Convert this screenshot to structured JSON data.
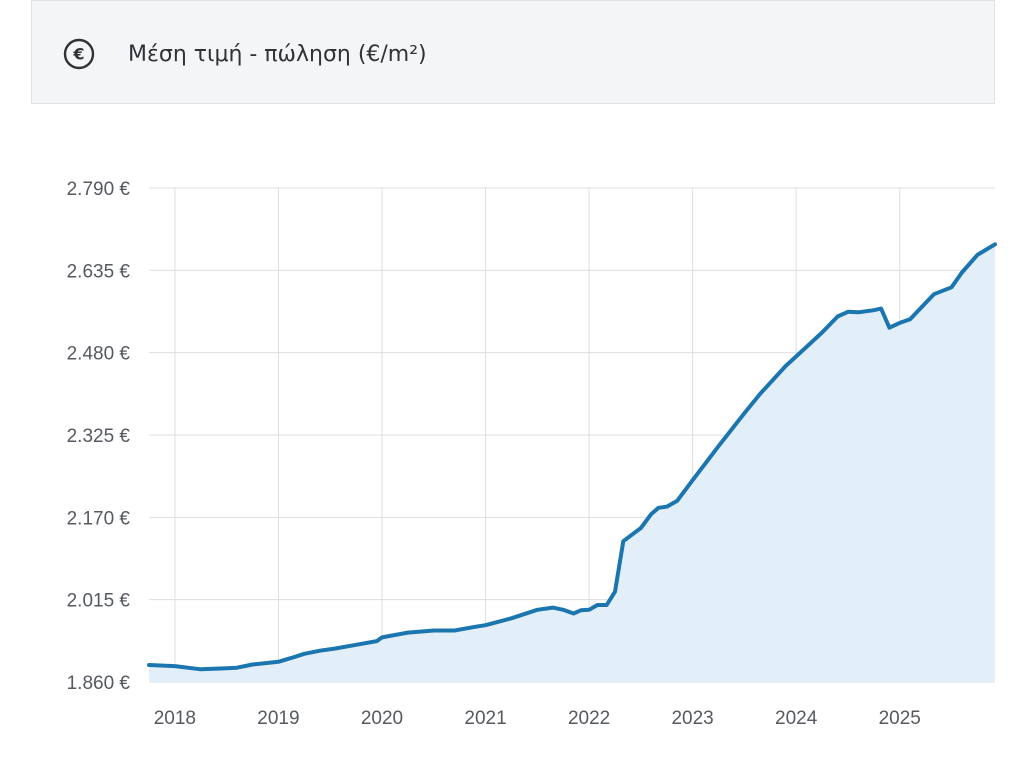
{
  "header": {
    "icon": "euro-circle-icon",
    "title": "Μέση τιμή - πώληση (€/m²)"
  },
  "colors": {
    "line": "#1b76b0",
    "area": "#e3eff8",
    "grid": "#dcdfe3",
    "header_bg": "#f4f5f7"
  },
  "chart_data": {
    "type": "area",
    "title": "Μέση τιμή - πώληση (€/m²)",
    "xlabel": "",
    "ylabel": "",
    "ylim": [
      1860,
      2790
    ],
    "xlim": [
      2017.75,
      2025.92
    ],
    "grid": true,
    "y_ticks": [
      "1.860 €",
      "2.015 €",
      "2.170 €",
      "2.325 €",
      "2.480 €",
      "2.635 €",
      "2.790 €"
    ],
    "y_tick_values": [
      1860,
      2015,
      2170,
      2325,
      2480,
      2635,
      2790
    ],
    "x_ticks": [
      "2018",
      "2019",
      "2020",
      "2021",
      "2022",
      "2023",
      "2024",
      "2025"
    ],
    "x_tick_values": [
      2018,
      2019,
      2020,
      2021,
      2022,
      2023,
      2024,
      2025
    ],
    "series": [
      {
        "x": [
          2017.75,
          2018.0,
          2018.25,
          2018.5,
          2018.6,
          2018.75,
          2019.0,
          2019.12,
          2019.25,
          2019.4,
          2019.55,
          2019.75,
          2019.95,
          2020.0,
          2020.25,
          2020.5,
          2020.7,
          2020.9,
          2021.0,
          2021.25,
          2021.5,
          2021.65,
          2021.75,
          2021.85,
          2021.92,
          2022.0,
          2022.08,
          2022.17,
          2022.25,
          2022.33,
          2022.5,
          2022.6,
          2022.67,
          2022.75,
          2022.85,
          2023.0,
          2023.25,
          2023.5,
          2023.65,
          2023.9,
          2024.0,
          2024.25,
          2024.4,
          2024.5,
          2024.6,
          2024.75,
          2024.82,
          2024.9,
          2025.0,
          2025.1,
          2025.33,
          2025.5,
          2025.6,
          2025.75,
          2025.92
        ],
        "values": [
          1892,
          1890,
          1884,
          1886,
          1887,
          1893,
          1898,
          1905,
          1913,
          1919,
          1923,
          1930,
          1937,
          1944,
          1953,
          1957,
          1957,
          1964,
          1967,
          1980,
          1996,
          2000,
          1996,
          1989,
          1995,
          1996,
          2005,
          2005,
          2030,
          2125,
          2150,
          2176,
          2188,
          2190,
          2201,
          2240,
          2304,
          2366,
          2402,
          2455,
          2473,
          2518,
          2548,
          2557,
          2556,
          2560,
          2563,
          2527,
          2536,
          2543,
          2590,
          2603,
          2631,
          2664,
          2684
        ]
      }
    ]
  }
}
